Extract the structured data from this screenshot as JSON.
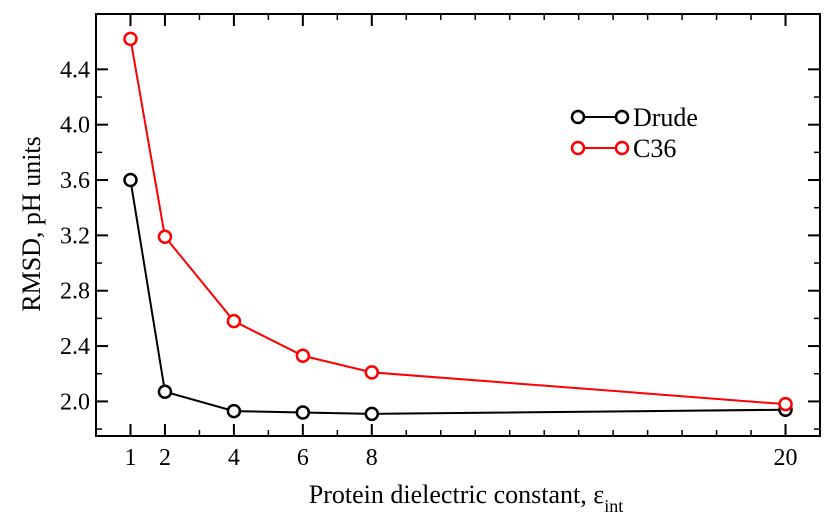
{
  "chart_data": {
    "type": "line",
    "xlabel": "Protein dielectric constant, ε",
    "xlabel_subscript": "int",
    "ylabel": "RMSD, pH units",
    "x_ticks": [
      1,
      2,
      4,
      6,
      8,
      20
    ],
    "y_ticks": [
      "2.0",
      "2.4",
      "2.8",
      "3.2",
      "3.6",
      "4.0",
      "4.4"
    ],
    "xlim": [
      0,
      21
    ],
    "ylim": [
      1.75,
      4.8
    ],
    "legend_position": "upper-right",
    "grid": false,
    "series": [
      {
        "name": "Drude",
        "color": "#000000",
        "x": [
          1,
          2,
          4,
          6,
          8,
          20
        ],
        "values": [
          3.6,
          2.07,
          1.93,
          1.92,
          1.91,
          1.94
        ]
      },
      {
        "name": "C36",
        "color": "#ff0000",
        "x": [
          1,
          2,
          4,
          6,
          8,
          20
        ],
        "values": [
          4.62,
          3.19,
          2.58,
          2.33,
          2.21,
          1.98
        ]
      }
    ]
  }
}
